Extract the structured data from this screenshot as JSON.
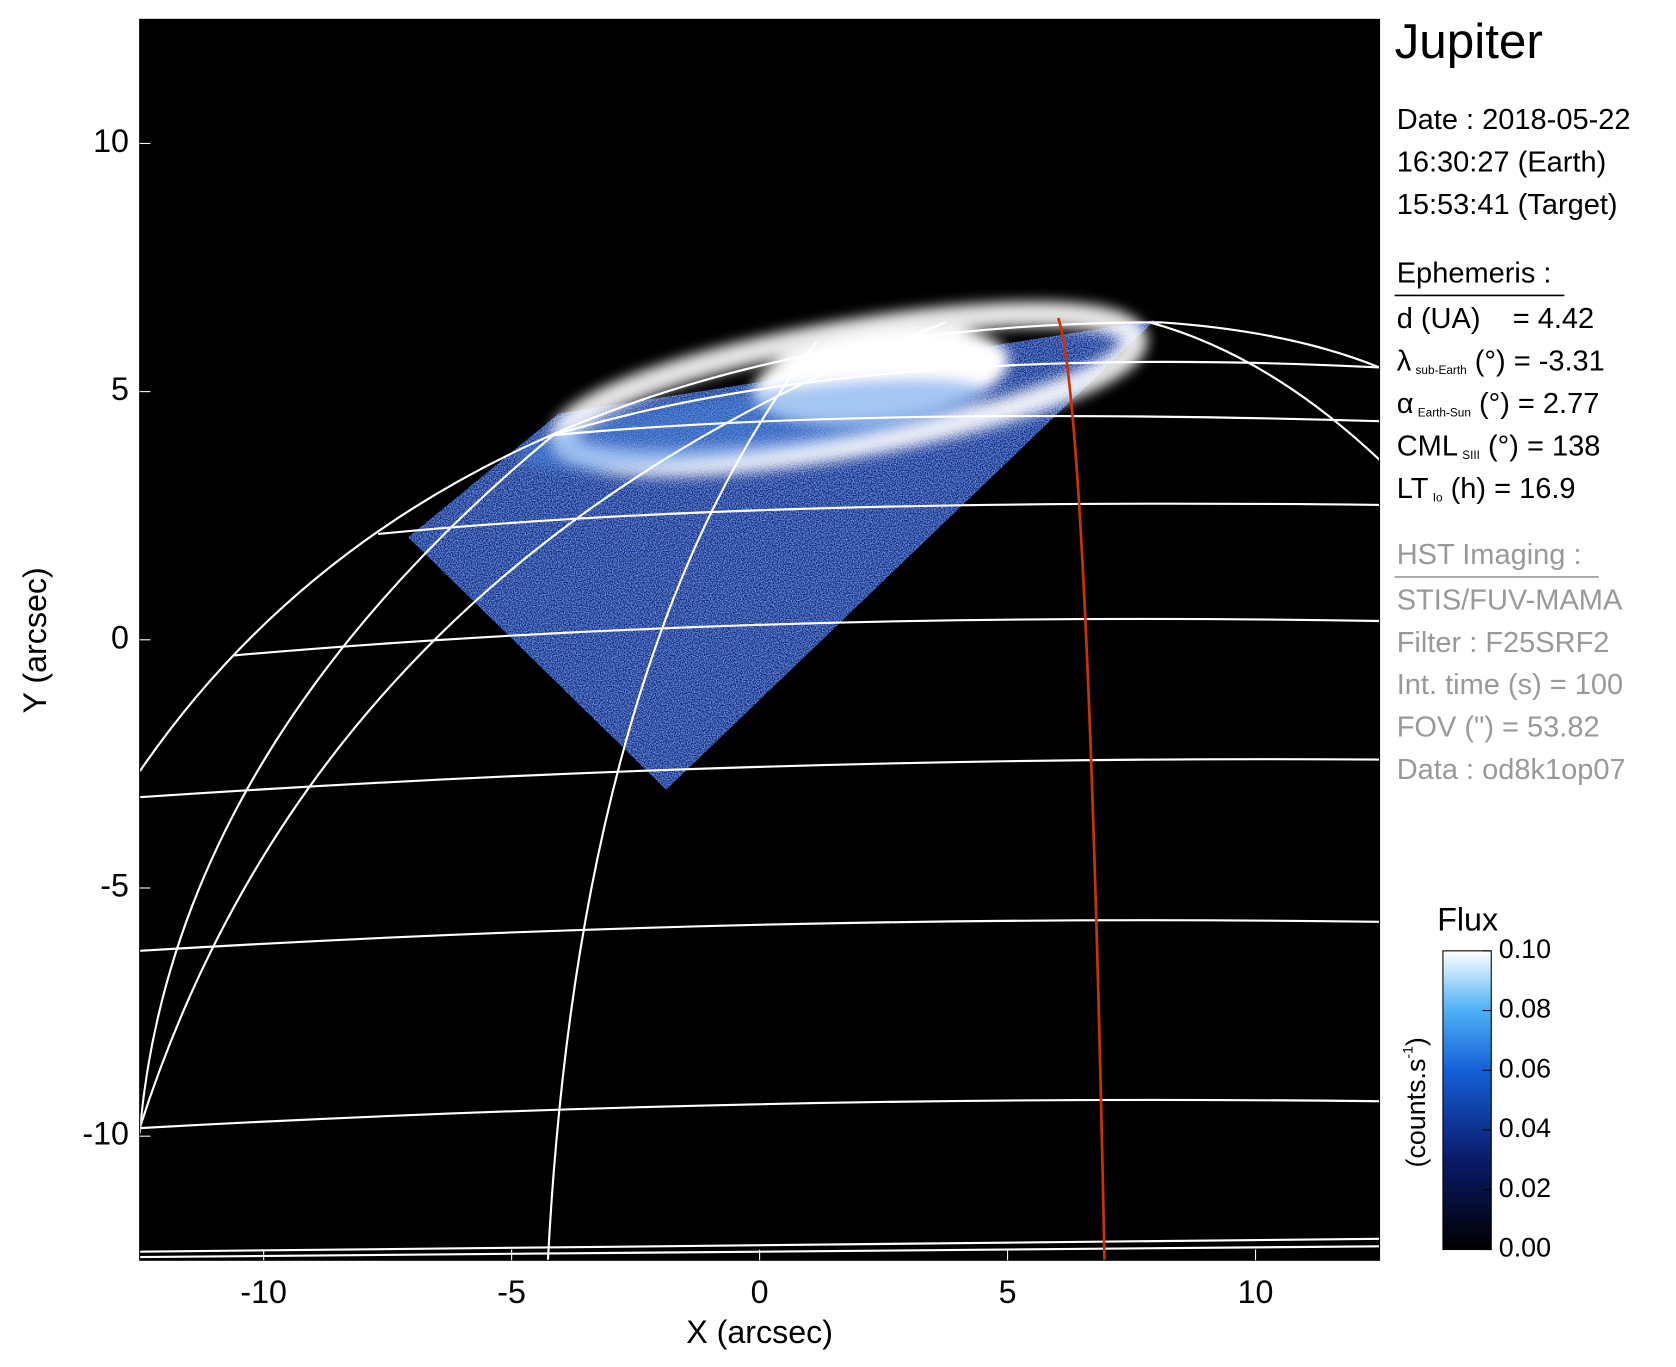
{
  "chart_data": {
    "type": "image",
    "title": "Jupiter",
    "xlabel": "X (arcsec)",
    "ylabel": "Y (arcsec)",
    "xlim": [
      -12.5,
      12.5
    ],
    "ylim": [
      -12.5,
      12.5
    ],
    "xticks": [
      -10,
      -5,
      0,
      5,
      10
    ],
    "yticks": [
      -10,
      -5,
      0,
      5,
      10
    ],
    "date_lines": [
      "Date : 2018-05-22",
      "16:30:27 (Earth)",
      "15:53:41 (Target)"
    ],
    "ephemeris": {
      "heading": "Ephemeris :",
      "lines": [
        {
          "symbol": "d (UA)",
          "text": "    = 4.42"
        },
        {
          "symbol": "λ",
          "sub": "sub-Earth",
          "text": " (°) = -3.31"
        },
        {
          "symbol": "α",
          "sub": "Earth-Sun",
          "text": " (°) = 2.77"
        },
        {
          "symbol": "CML",
          "sub": "SIII",
          "text": " (°) = 138"
        },
        {
          "symbol": "LT",
          "sub": "Io",
          "text": " (h) = 16.9"
        }
      ]
    },
    "imaging": {
      "heading": "HST Imaging :",
      "lines": [
        "STIS/FUV-MAMA",
        "Filter : F25SRF2",
        "Int. time (s) = 100",
        "FOV (\") = 53.82",
        "Data : od8k1op07"
      ]
    },
    "colorbar": {
      "title": "Flux",
      "label": "(counts.s",
      "label_sup": "-1",
      "label_end": ")",
      "clim": [
        0,
        0.1
      ],
      "ticks": [
        {
          "value": 0,
          "label": "0.00"
        },
        {
          "value": 0.02,
          "label": "0.02"
        },
        {
          "value": 0.04,
          "label": "0.04"
        },
        {
          "value": 0.06,
          "label": "0.06"
        },
        {
          "value": 0.08,
          "label": "0.08"
        },
        {
          "value": 0.1,
          "label": "0.10"
        }
      ]
    }
  }
}
